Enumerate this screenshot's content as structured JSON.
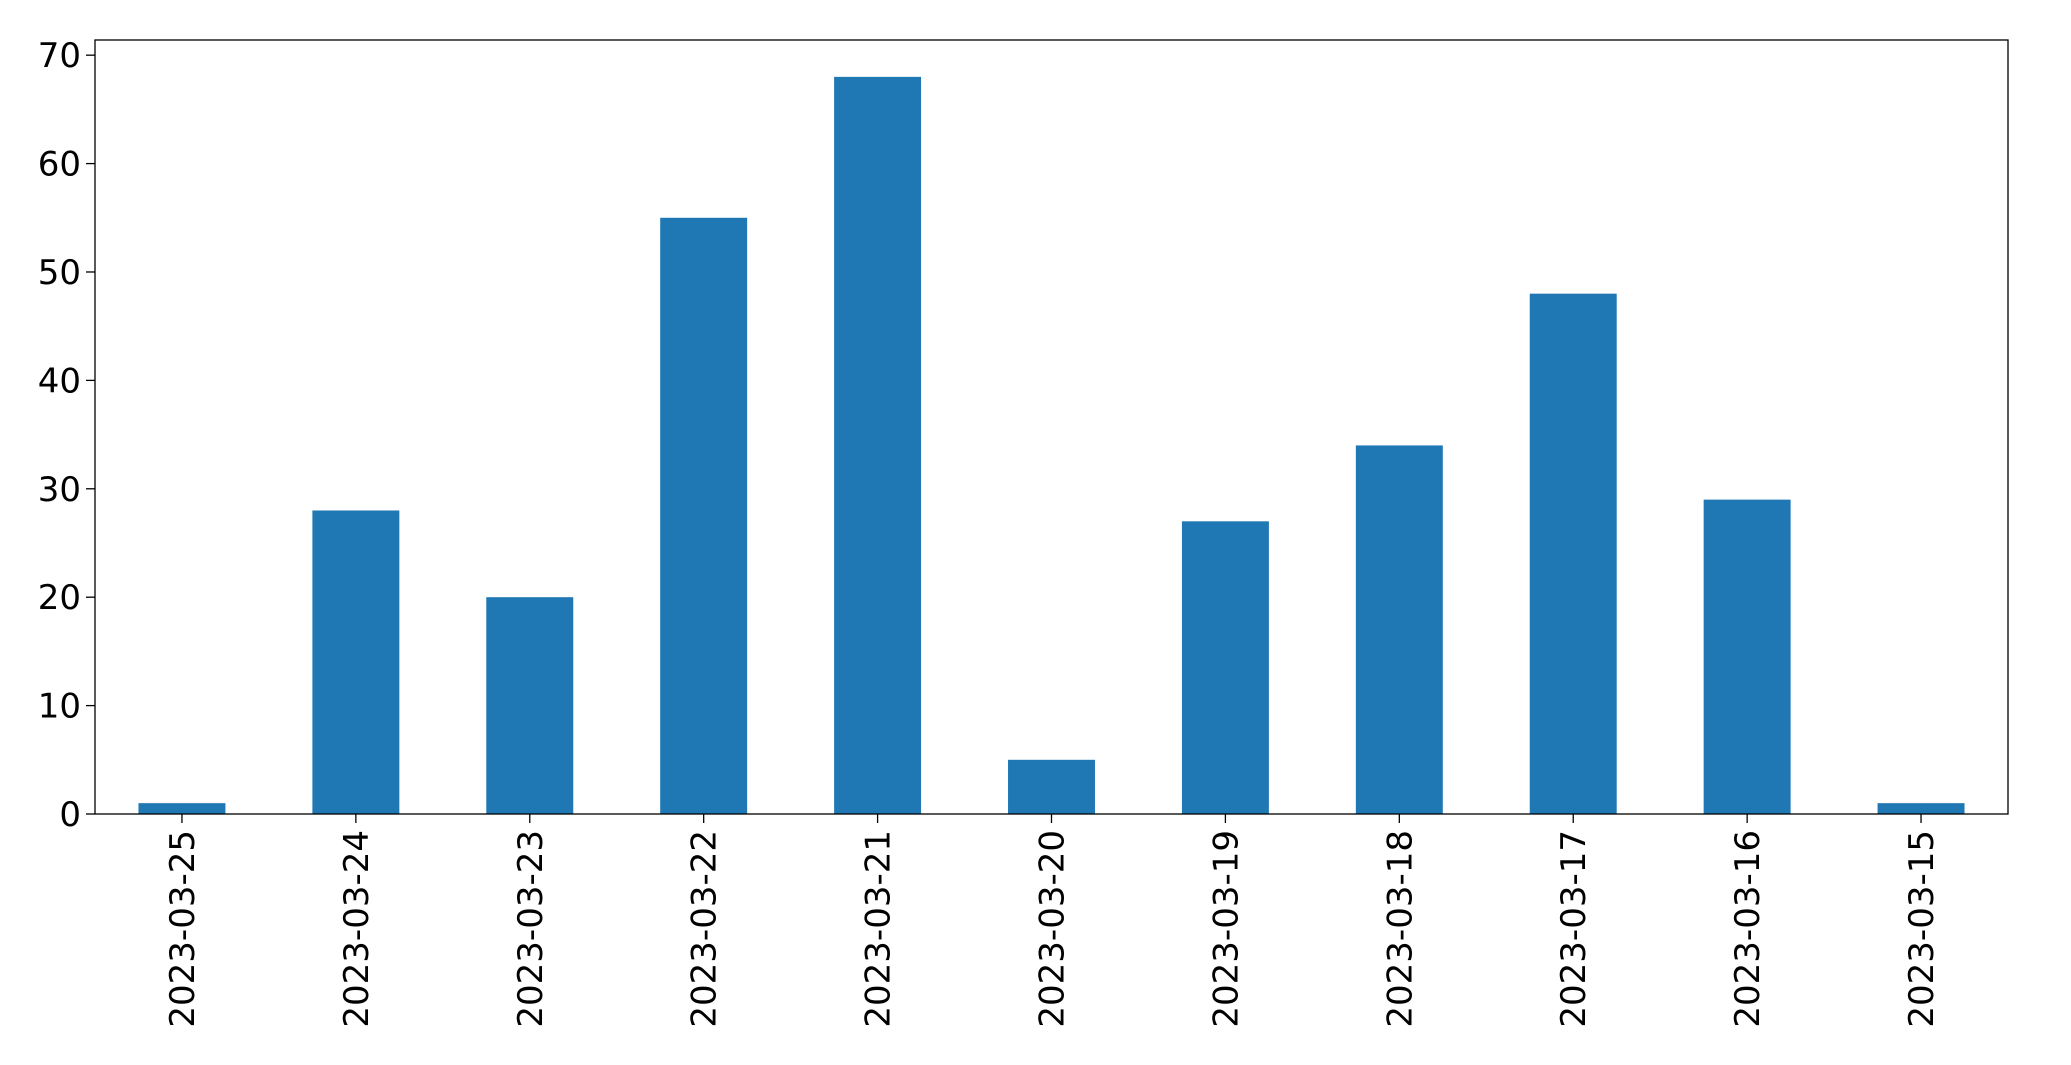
{
  "chart_data": {
    "type": "bar",
    "title": "",
    "xlabel": "",
    "ylabel": "",
    "categories": [
      "2023-03-25",
      "2023-03-24",
      "2023-03-23",
      "2023-03-22",
      "2023-03-21",
      "2023-03-20",
      "2023-03-19",
      "2023-03-18",
      "2023-03-17",
      "2023-03-16",
      "2023-03-15"
    ],
    "series": [
      {
        "values": [
          1,
          28,
          20,
          55,
          68,
          5,
          27,
          34,
          48,
          29,
          1
        ],
        "color": "#1f77b4"
      }
    ],
    "ylim": [
      0,
      71.4
    ],
    "yticks": [
      0,
      10,
      20,
      30,
      40,
      50,
      60,
      70
    ],
    "grid": false,
    "legend": "none"
  }
}
